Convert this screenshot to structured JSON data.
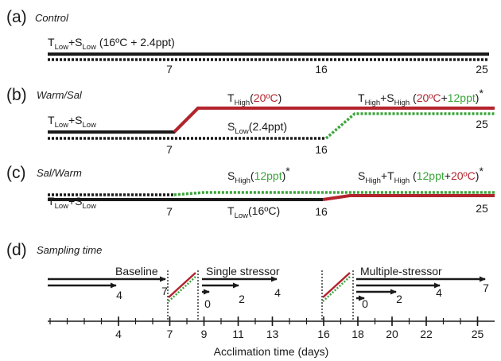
{
  "panels": {
    "a": {
      "letter": "(a)",
      "title": "Control",
      "label": {
        "t": "T",
        "t_sub": "Low",
        "plus": "+S",
        "s_sub": "Low",
        "rest": " (16ºC + 2.4ppt)"
      },
      "days": [
        "7",
        "16",
        "25"
      ]
    },
    "b": {
      "letter": "(b)",
      "title": "Warm/Sal",
      "start": {
        "t": "T",
        "t_sub": "Low",
        "plus": "+S",
        "s_sub": "Low"
      },
      "thigh": {
        "t": "T",
        "t_sub": "High",
        "val": "20ºC"
      },
      "slow": {
        "s": "S",
        "s_sub": "Low",
        "val": "(2.4ppt)"
      },
      "both": {
        "t": "T",
        "t_sub": "High",
        "plus": "+S",
        "s_sub": "High",
        "v1": "20ºC",
        "plus2": "+",
        "v2": "12ppt",
        "star": "*"
      },
      "days": [
        "7",
        "16",
        "25"
      ]
    },
    "c": {
      "letter": "(c)",
      "title": "Sal/Warm",
      "start": {
        "t": "T",
        "t_sub": "Low",
        "plus": "+S",
        "s_sub": "Low"
      },
      "shigh": {
        "s": "S",
        "s_sub": "High",
        "val": "12ppt",
        "star": "*"
      },
      "tlow": {
        "t": "T",
        "t_sub": "Low",
        "val": "(16ºC)"
      },
      "both": {
        "s": "S",
        "s_sub": "High",
        "plus": "+T",
        "t_sub": "High",
        "v1": "12ppt",
        "plus2": "+",
        "v2": "20ºC",
        "star": "*"
      },
      "days": [
        "7",
        "16",
        "25"
      ]
    },
    "d": {
      "letter": "(d)",
      "title": "Sampling time",
      "phases": [
        "Baseline",
        "Single stressor",
        "Multiple-stressor"
      ],
      "baseline_days": [
        "4",
        "7"
      ],
      "single_days": [
        "0",
        "2",
        "4"
      ],
      "multi_days": [
        "0",
        "2",
        "4",
        "7"
      ]
    }
  },
  "axis": {
    "ticks": [
      "4",
      "7",
      "9",
      "11",
      "13",
      "16",
      "18",
      "20",
      "22",
      "25"
    ],
    "label": "Acclimation time (days)"
  },
  "colors": {
    "black": "#1a1a1a",
    "red": "#b3242d",
    "green": "#3aa53a"
  }
}
